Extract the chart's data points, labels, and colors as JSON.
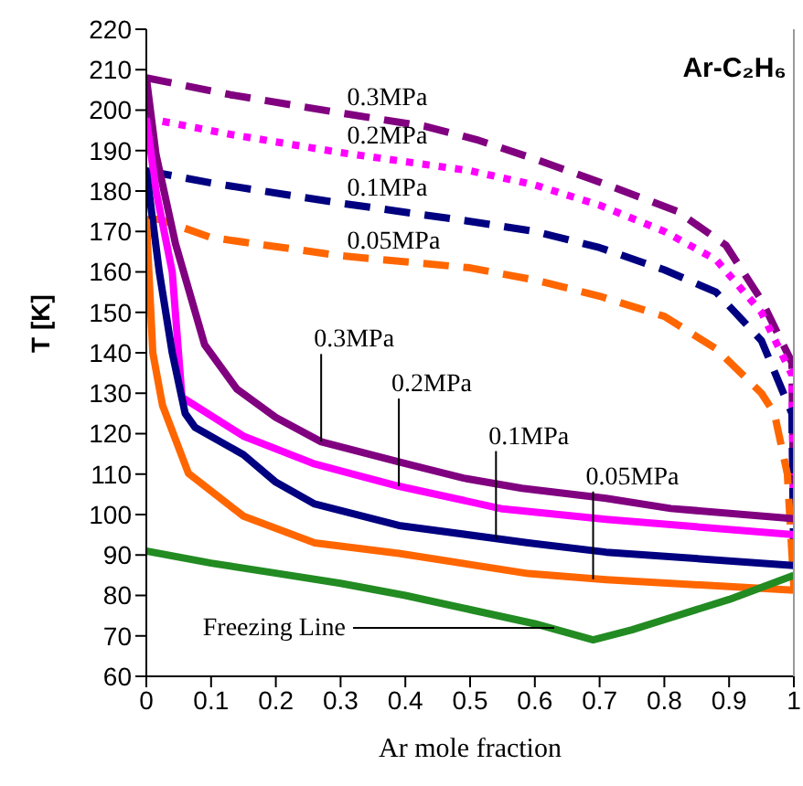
{
  "chart_data": {
    "type": "line",
    "title": "Ar-C₂H₆",
    "xlabel": "Ar mole fraction",
    "ylabel": "T [K]",
    "xlim": [
      0,
      1
    ],
    "xticks": [
      0,
      0.1,
      0.2,
      0.3,
      0.4,
      0.5,
      0.6,
      0.7,
      0.8,
      0.9,
      1
    ],
    "ylim": [
      60,
      220
    ],
    "yticks": [
      60,
      70,
      80,
      90,
      100,
      110,
      120,
      130,
      140,
      150,
      160,
      170,
      180,
      190,
      200,
      210,
      220
    ],
    "marker": "none",
    "series": [
      {
        "color": "#800080",
        "line_style": "dashed",
        "x": [
          0,
          0.13,
          0.3,
          0.43,
          0.51,
          0.6,
          0.695,
          0.82,
          0.895,
          0.95,
          0.997,
          1
        ],
        "values": [
          208,
          203.8,
          199.3,
          196,
          192.7,
          187.9,
          182.5,
          175,
          166.6,
          153,
          137.6,
          99
        ]
      },
      {
        "color": "#ff00ff",
        "line_style": "dotted",
        "x": [
          0,
          0.13,
          0.3,
          0.5,
          0.6,
          0.7,
          0.8,
          0.88,
          0.95,
          0.997,
          1
        ],
        "values": [
          198,
          194,
          189.5,
          185,
          181.5,
          176.5,
          170,
          163,
          150,
          134.6,
          95
        ]
      },
      {
        "color": "#000080",
        "line_style": "dashed",
        "x": [
          0,
          0.1,
          0.3,
          0.5,
          0.6,
          0.7,
          0.8,
          0.88,
          0.95,
          0.997,
          1
        ],
        "values": [
          185,
          182,
          177,
          172.5,
          170,
          166,
          160.5,
          155,
          143,
          125,
          87.5
        ]
      },
      {
        "color": "#ff6600",
        "line_style": "dashed",
        "x": [
          0,
          0.02,
          0.1,
          0.3,
          0.5,
          0.6,
          0.7,
          0.8,
          0.88,
          0.95,
          0.97,
          0.99,
          1
        ],
        "values": [
          173,
          173,
          168.5,
          164,
          161,
          158,
          154,
          149,
          141,
          130,
          125,
          110,
          82
        ]
      },
      {
        "color": "#800080",
        "line_style": "solid",
        "x": [
          0,
          0.015,
          0.045,
          0.09,
          0.14,
          0.2,
          0.27,
          0.39,
          0.49,
          0.58,
          0.71,
          0.81,
          1
        ],
        "values": [
          208,
          189,
          167,
          142,
          131,
          124,
          118,
          113,
          109,
          106.5,
          104,
          101.5,
          99
        ]
      },
      {
        "color": "#ff00ff",
        "line_style": "solid",
        "x": [
          0,
          0.015,
          0.04,
          0.055,
          0.15,
          0.26,
          0.39,
          0.55,
          0.71,
          1
        ],
        "values": [
          198,
          180,
          160,
          129,
          119.4,
          112.5,
          107,
          101.4,
          98.8,
          95
        ]
      },
      {
        "color": "#000080",
        "line_style": "solid",
        "x": [
          0,
          0.02,
          0.04,
          0.06,
          0.075,
          0.15,
          0.2,
          0.26,
          0.39,
          0.59,
          0.71,
          1
        ],
        "values": [
          185,
          160,
          140,
          125,
          121.6,
          114.8,
          108,
          102.6,
          97.3,
          93,
          90.7,
          87.4
        ]
      },
      {
        "color": "#ff6600",
        "line_style": "solid",
        "x": [
          0,
          0.01,
          0.025,
          0.065,
          0.15,
          0.26,
          0.39,
          0.59,
          0.71,
          1
        ],
        "values": [
          173,
          140,
          127,
          110.2,
          99.6,
          93,
          90.4,
          85.4,
          83.9,
          81.3
        ]
      },
      {
        "color": "#228b22",
        "line_style": "solid",
        "x": [
          0,
          0.1,
          0.2,
          0.3,
          0.4,
          0.5,
          0.6,
          0.69,
          0.75,
          0.8,
          0.9,
          1
        ],
        "values": [
          91,
          88,
          85.5,
          83,
          80,
          76.5,
          73,
          69,
          71.5,
          74,
          79,
          85
        ]
      }
    ],
    "annotations": [
      {
        "text": "0.3MPa",
        "x": 0.31,
        "y": 199
      },
      {
        "text": "0.2MPa",
        "x": 0.31,
        "y": 189.5
      },
      {
        "text": "0.1MPa",
        "x": 0.31,
        "y": 176.5
      },
      {
        "text": "0.05MPa",
        "x": 0.31,
        "y": 163.5
      },
      {
        "text": "0.3MPa",
        "x": 0.27,
        "y": 118
      },
      {
        "text": "0.2MPa",
        "x": 0.39,
        "y": 107
      },
      {
        "text": "0.1MPa",
        "x": 0.54,
        "y": 94
      },
      {
        "text": "0.05MPa",
        "x": 0.69,
        "y": 84
      },
      {
        "text": "Freezing Line",
        "x": 0.63,
        "y": 72
      }
    ]
  }
}
